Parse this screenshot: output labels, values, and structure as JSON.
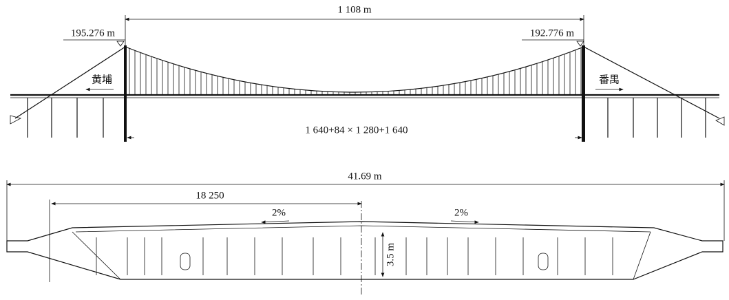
{
  "elevation": {
    "main_span": "1 108 m",
    "left_tower_elevation": "195.276 m",
    "right_tower_elevation": "192.776 m",
    "left_direction": "黄埔",
    "right_direction": "番禺",
    "span_arrangement": "1 640+84 × 1 280+1 640"
  },
  "cross_section": {
    "total_width": "41.69 m",
    "half_width": "18 250",
    "left_slope": "2%",
    "right_slope": "2%",
    "depth": "3.5 m"
  }
}
